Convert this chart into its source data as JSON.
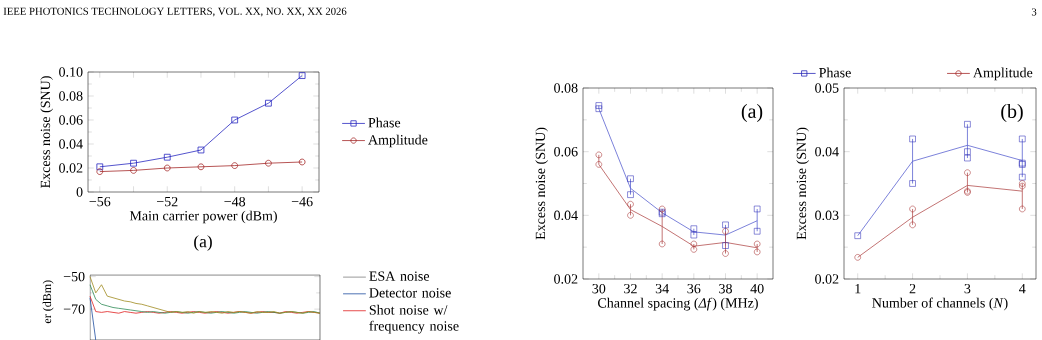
{
  "chart_data": [
    {
      "type": "line",
      "categories": [
        "−56",
        null,
        "−52",
        null,
        "−48",
        null,
        "−46"
      ],
      "xlabel": "Main carrier power (dBm)",
      "ylabel": "Excess noise (SNU)",
      "ylim": [
        0,
        0.1
      ],
      "yticks": [
        0,
        0.02,
        0.04,
        0.06,
        0.08,
        {
          "value": 0.1,
          "label": "0.10"
        }
      ],
      "legend": "right",
      "annotations": [
        "IEEE PHOTONICS TECHNOLOGY LETTERS, VOL. XX, NO. XX, XX 2026",
        "3",
        "(a)"
      ],
      "series": [
        {
          "name": "Phase",
          "color": "#2828c0",
          "marker": "square",
          "values": [
            0.021,
            0.024,
            0.029,
            0.035,
            0.06,
            0.074,
            0.097
          ]
        },
        {
          "name": "Amplitude",
          "color": "#a52a2a",
          "marker": "circle",
          "values": [
            0.017,
            0.018,
            0.02,
            0.021,
            0.022,
            0.024,
            0.025
          ]
        }
      ]
    },
    {
      "type": "line",
      "categories": [
        null,
        null,
        null,
        null,
        null,
        null,
        null,
        null,
        null,
        null,
        null,
        null,
        null,
        null,
        null,
        null,
        null,
        null,
        null,
        null,
        null,
        null,
        null,
        null,
        null,
        null,
        null,
        null,
        null,
        null,
        null,
        null,
        null,
        null,
        null,
        null,
        null,
        null,
        null,
        null,
        null
      ],
      "ylabel": "er (dBm)",
      "ylim": [
        -89,
        -49
      ],
      "yticks": [
        {
          "value": -50,
          "label": "−50"
        },
        {
          "value": -70,
          "label": "−70"
        }
      ],
      "tick_labels": "y",
      "legend": "top right",
      "series": [
        {
          "name": "ESA noise",
          "color": "#808080",
          "values": [
            null,
            null,
            null,
            null,
            null,
            null,
            null,
            null,
            null,
            null,
            null,
            null,
            null,
            null,
            null,
            null,
            null,
            null,
            null,
            null,
            null,
            null,
            null,
            null,
            null,
            null,
            null,
            null,
            null,
            null,
            null,
            null,
            null,
            null,
            null,
            null,
            null,
            null,
            null,
            null,
            null
          ]
        },
        {
          "name": "Detector noise",
          "color": "#1f4e9f",
          "values": [
            -63,
            -89,
            null,
            null,
            null,
            null,
            null,
            null,
            null,
            null,
            null,
            null,
            null,
            null,
            null,
            null,
            null,
            null,
            null,
            null,
            null,
            null,
            null,
            null,
            null,
            null,
            null,
            null,
            null,
            null,
            null,
            null,
            null,
            null,
            null,
            null,
            null,
            null,
            null,
            null,
            null
          ]
        },
        {
          "name": "Shot noise w/ frequency noise",
          "color": "#e02020",
          "values": [
            -62,
            -71.5,
            -72,
            -71.5,
            -72,
            -72.5,
            -71.5,
            -72,
            -72.5,
            -72,
            -71.5,
            -72,
            -72.5,
            -72,
            -71.5,
            -72,
            -72.5,
            -72,
            -71.5,
            -72,
            -72.5,
            -72,
            -71.5,
            -72,
            -72.5,
            -72,
            -71.5,
            -72,
            -72.5,
            -72,
            -71.5,
            -72,
            -72,
            -72.5,
            -71.5,
            -72,
            -72.5,
            -72,
            -71.5,
            -72,
            -72.5
          ]
        },
        {
          "color": "#2e8b57",
          "values": [
            -55,
            -64,
            -67,
            -68,
            -69,
            -69.5,
            -70,
            -70.5,
            -71,
            -71.5,
            -72,
            -71.5,
            -72,
            -72.5,
            -72,
            -71.5,
            -72,
            -72.5,
            -72,
            -71.5,
            -72,
            -72.5,
            -72,
            -71.5,
            -72,
            -72.5,
            -72,
            -71.5,
            -72,
            -72.5,
            -72,
            -71.5,
            -72,
            -72.5,
            -72,
            -71.5,
            -72,
            -72.5,
            -72,
            -71.5,
            -72.5
          ]
        },
        {
          "color": "#a08a1e",
          "values": [
            -50,
            -60,
            -55,
            -62,
            -63,
            -64,
            -65,
            -65.5,
            -66.5,
            -67,
            -68,
            -69,
            -70,
            -71,
            -72,
            -71.5,
            -72,
            -71.5,
            -72.5,
            -71.5,
            -72,
            -71.5,
            -72,
            -72.5,
            -71.5,
            -72,
            -71.5,
            -72,
            -72.5,
            -71.5,
            -72,
            -72,
            -71.5,
            -72.5,
            -72,
            -71.5,
            -72,
            -72.5,
            -71.5,
            -72,
            -72.5
          ]
        }
      ]
    },
    {
      "type": "line",
      "xlabel": "Channel spacing (*Δf*) (MHz)",
      "ylabel": "Excess noise (SNU)",
      "xlim": [
        29,
        41
      ],
      "xticks": [
        30,
        32,
        34,
        36,
        38,
        40
      ],
      "ylim": [
        0.02,
        0.08
      ],
      "yticks": [
        0.02,
        0.04,
        0.06,
        0.08
      ],
      "annotations": [
        "(a)"
      ],
      "series": [
        {
          "type": "scatter",
          "color": "#2828b8",
          "marker": "square",
          "x": [
            30,
            30,
            32,
            32,
            34,
            34,
            36,
            36,
            38,
            38,
            40,
            40
          ],
          "values": [
            0.0745,
            0.0735,
            0.0515,
            0.0465,
            0.041,
            0.0405,
            0.0358,
            0.0338,
            0.037,
            0.0305,
            0.042,
            0.035
          ]
        },
        {
          "color": "#5a62d0",
          "x": [
            30,
            32,
            34,
            36,
            38,
            40
          ],
          "values": [
            0.0735,
            0.0485,
            0.0408,
            0.0348,
            0.0338,
            0.0383
          ],
          "errors": [
            [
              0.0735,
              0.0745
            ],
            [
              0.0465,
              0.0515
            ],
            [
              0.0405,
              0.041
            ],
            [
              0.0338,
              0.0358
            ],
            [
              0.0305,
              0.037
            ],
            [
              0.035,
              0.042
            ]
          ]
        },
        {
          "type": "scatter",
          "color": "#a52a2a",
          "marker": "circle",
          "x": [
            30,
            30,
            32,
            32,
            34,
            34,
            36,
            36,
            38,
            38,
            40,
            40
          ],
          "values": [
            0.059,
            0.056,
            0.0435,
            0.04,
            0.042,
            0.031,
            0.031,
            0.0293,
            0.035,
            0.028,
            0.031,
            0.0285
          ]
        },
        {
          "color": "#b45050",
          "x": [
            30,
            32,
            34,
            36,
            38,
            40
          ],
          "values": [
            0.056,
            0.0418,
            0.0365,
            0.0303,
            0.0315,
            0.0298
          ],
          "errors": [
            [
              0.056,
              0.059
            ],
            [
              0.04,
              0.0435
            ],
            [
              0.031,
              0.042
            ],
            [
              0.0293,
              0.031
            ],
            [
              0.028,
              0.035
            ],
            [
              0.0285,
              0.031
            ]
          ]
        }
      ]
    },
    {
      "type": "line",
      "xlabel": "Number of channels (*N*)",
      "ylabel": "Excess noise (SNU)",
      "xlim": [
        0.75,
        4.25
      ],
      "xticks": [
        1,
        2,
        3,
        4
      ],
      "ylim": [
        0.02,
        0.05
      ],
      "yticks": [
        0.02,
        0.03,
        0.04,
        0.05
      ],
      "legend": "top",
      "annotations": [
        "(b)"
      ],
      "series": [
        {
          "name": "Phase",
          "type": "scatter",
          "color": "#2828b8",
          "marker": "square",
          "x": [
            1,
            2,
            2,
            3,
            3,
            3,
            4,
            4,
            4,
            4
          ],
          "values": [
            0.0268,
            0.042,
            0.035,
            0.0443,
            0.04,
            0.039,
            0.042,
            0.038,
            0.0382,
            0.036
          ]
        },
        {
          "color": "#5a62d0",
          "x": [
            1,
            2,
            3,
            4
          ],
          "values": [
            0.0268,
            0.0385,
            0.041,
            0.0386
          ],
          "errors": [
            null,
            [
              0.035,
              0.042
            ],
            [
              0.039,
              0.0443
            ],
            [
              0.036,
              0.042
            ]
          ]
        },
        {
          "name": "Amplitude",
          "type": "scatter",
          "color": "#a52a2a",
          "marker": "circle",
          "x": [
            1,
            2,
            2,
            3,
            3,
            3,
            4,
            4,
            4
          ],
          "values": [
            0.0234,
            0.031,
            0.0285,
            0.0367,
            0.0338,
            0.0336,
            0.035,
            0.0346,
            0.031
          ]
        },
        {
          "color": "#b45050",
          "x": [
            1,
            2,
            3,
            4
          ],
          "values": [
            0.0234,
            0.0297,
            0.0347,
            0.0338
          ],
          "errors": [
            null,
            [
              0.0285,
              0.031
            ],
            [
              0.0336,
              0.0367
            ],
            [
              0.031,
              0.035
            ]
          ]
        }
      ]
    }
  ]
}
